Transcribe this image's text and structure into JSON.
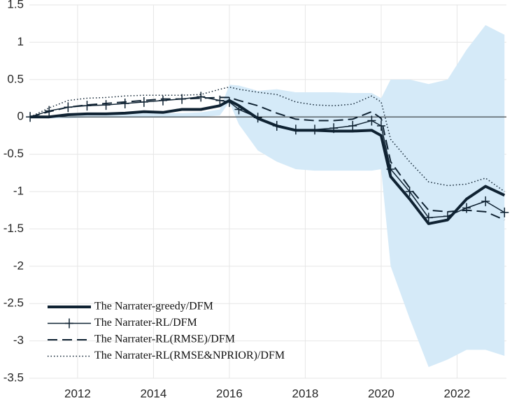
{
  "chart_data": {
    "type": "line",
    "x": [
      2010.75,
      2011.25,
      2011.75,
      2012.25,
      2012.75,
      2013.25,
      2013.75,
      2014.25,
      2014.75,
      2015.25,
      2015.75,
      2016,
      2016.25,
      2016.75,
      2017.25,
      2017.75,
      2018.25,
      2018.75,
      2019.25,
      2019.75,
      2020,
      2020.25,
      2020.75,
      2021.25,
      2021.75,
      2022.25,
      2022.75,
      2023.25
    ],
    "band": {
      "color": "#d5eaf8",
      "upper": [
        0,
        0,
        0.02,
        0.03,
        0.03,
        0.04,
        0.05,
        0.05,
        0.05,
        0.06,
        0.1,
        0.43,
        0.42,
        0.35,
        0.37,
        0.33,
        0.33,
        0.33,
        0.32,
        0.32,
        0.25,
        0.5,
        0.5,
        0.44,
        0.5,
        0.9,
        1.23,
        1.1
      ],
      "lower": [
        0,
        -0.02,
        -0.02,
        -0.01,
        -0.01,
        -0.01,
        -0.01,
        -0.01,
        -0.01,
        0,
        0.02,
        0.2,
        -0.1,
        -0.45,
        -0.6,
        -0.7,
        -0.72,
        -0.72,
        -0.72,
        -0.72,
        -0.7,
        -2.0,
        -2.7,
        -3.35,
        -3.25,
        -3.12,
        -3.12,
        -3.2
      ]
    },
    "series": [
      {
        "name": "The Narrater-greedy/DFM",
        "color": "#0f2232",
        "style": "solid",
        "width": 4,
        "values": [
          0,
          0,
          0.03,
          0.04,
          0.04,
          0.05,
          0.07,
          0.06,
          0.1,
          0.1,
          0.15,
          0.22,
          0.15,
          -0.02,
          -0.12,
          -0.18,
          -0.18,
          -0.19,
          -0.19,
          -0.18,
          -0.25,
          -0.8,
          -1.1,
          -1.43,
          -1.38,
          -1.1,
          -0.93,
          -1.05
        ]
      },
      {
        "name": "The Narrater-RL/DFM",
        "color": "#0f2232",
        "style": "plus",
        "width": 1.5,
        "values": [
          0,
          0.08,
          0.13,
          0.15,
          0.16,
          0.18,
          0.2,
          0.22,
          0.24,
          0.27,
          0.22,
          0.2,
          0.1,
          -0.01,
          -0.12,
          -0.17,
          -0.17,
          -0.15,
          -0.12,
          -0.05,
          -0.12,
          -0.7,
          -1.0,
          -1.35,
          -1.33,
          -1.22,
          -1.13,
          -1.28
        ]
      },
      {
        "name": "The Narrater-RL(RMSE)/DFM",
        "color": "#0f2232",
        "style": "dashed",
        "width": 2,
        "values": [
          0,
          0.07,
          0.13,
          0.16,
          0.18,
          0.2,
          0.22,
          0.24,
          0.24,
          0.25,
          0.26,
          0.26,
          0.22,
          0.15,
          0.05,
          -0.03,
          -0.05,
          -0.05,
          -0.03,
          0.07,
          -0.02,
          -0.6,
          -0.95,
          -1.25,
          -1.27,
          -1.25,
          -1.27,
          -1.38
        ]
      },
      {
        "name": "The Narrater-RL(RMSE&NPRIOR)/DFM",
        "color": "#0f2232",
        "style": "dotted",
        "width": 1.5,
        "values": [
          0,
          0.12,
          0.22,
          0.25,
          0.26,
          0.28,
          0.29,
          0.29,
          0.29,
          0.3,
          0.37,
          0.4,
          0.37,
          0.33,
          0.3,
          0.2,
          0.16,
          0.15,
          0.17,
          0.28,
          0.2,
          -0.3,
          -0.6,
          -0.87,
          -0.92,
          -0.9,
          -0.82,
          -1.0
        ]
      }
    ],
    "xlim": [
      2010.73,
      2023.3
    ],
    "xticks": [
      2012,
      2014,
      2016,
      2018,
      2020,
      2022
    ],
    "ylim": [
      -3.5,
      1.5
    ],
    "yticks": [
      1.5,
      1,
      0.5,
      0,
      -0.5,
      -1,
      -1.5,
      -2,
      -2.5,
      -3,
      -3.5
    ],
    "grid": true,
    "zero_line": true,
    "legend": "lower-left"
  }
}
